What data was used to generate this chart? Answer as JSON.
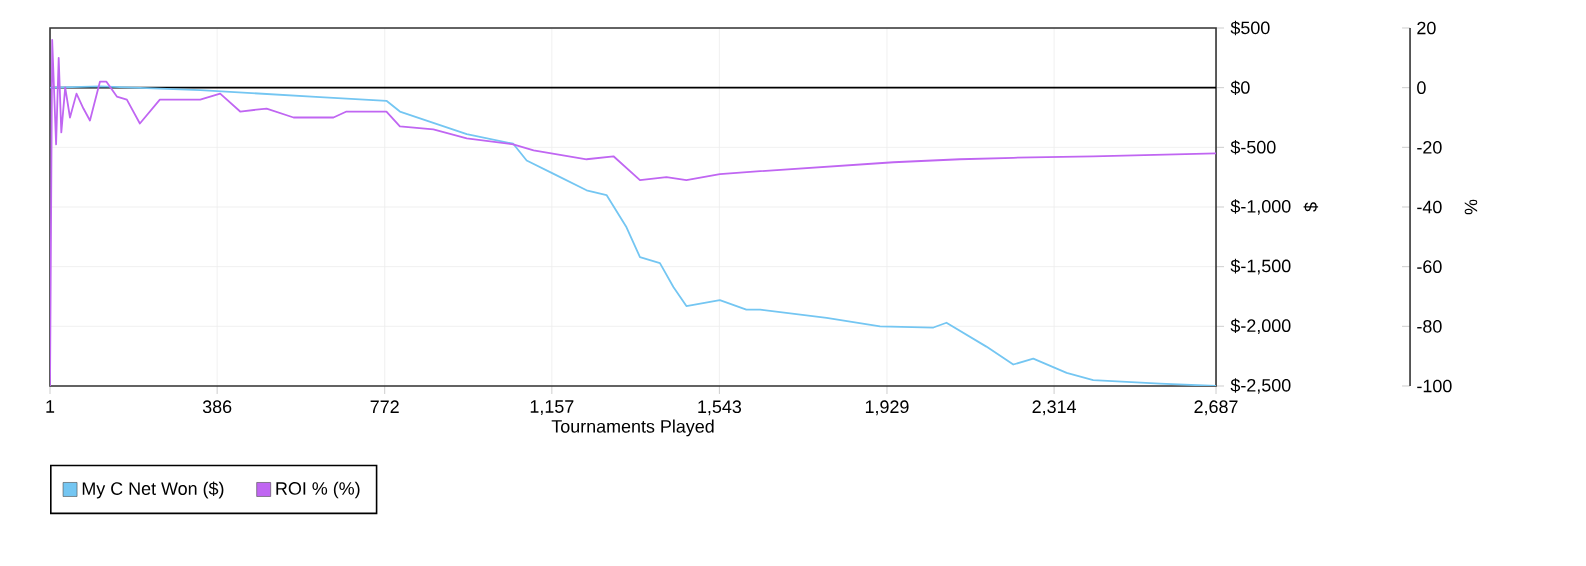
{
  "chart_data": {
    "type": "line",
    "xlabel": "Tournaments Played",
    "ylabel": "$",
    "y2label": "%",
    "xlim": [
      1,
      2687
    ],
    "xticks": [
      1,
      386,
      772,
      {
        "value": 1157,
        "label": "1,157"
      },
      {
        "value": 1543,
        "label": "1,543"
      },
      {
        "value": 1929,
        "label": "1,929"
      },
      {
        "value": 2314,
        "label": "2,314"
      },
      {
        "value": 2687,
        "label": "2,687"
      }
    ],
    "ylim": [
      -2500,
      500
    ],
    "yticks": [
      {
        "value": -2500,
        "label": "$-2,500"
      },
      {
        "value": -2000,
        "label": "$-2,000"
      },
      {
        "value": -1500,
        "label": "$-1,500"
      },
      {
        "value": -1000,
        "label": "$-1,000"
      },
      {
        "value": -500,
        "label": "$-500"
      },
      {
        "value": 0,
        "label": "$0"
      },
      {
        "value": 500,
        "label": "$500"
      }
    ],
    "y2lim": [
      -100,
      20
    ],
    "y2ticks": [
      -100,
      -80,
      -60,
      -40,
      -20,
      0,
      20
    ],
    "grid": true,
    "legend": "bottom left",
    "marker": "none",
    "line_style": "solid",
    "ref_lines": [
      {
        "axis": "y",
        "value": 0,
        "color": "#000000"
      }
    ],
    "series": [
      {
        "name": "My C Net Won ($)",
        "color": "#74c6f2",
        "x": [
          1,
          9,
          116,
          347,
          623,
          776,
          807,
          961,
          1068,
          1099,
          1160,
          1237,
          1283,
          1329,
          1360,
          1406,
          1437,
          1467,
          1544,
          1605,
          1637,
          1790,
          1913,
          2036,
          2066,
          2158,
          2220,
          2266,
          2343,
          2404,
          2558,
          2687
        ],
        "values": [
          0,
          0,
          10,
          -20,
          -80,
          -110,
          -200,
          -390,
          -470,
          -610,
          -720,
          -860,
          -900,
          -1170,
          -1420,
          -1470,
          -1670,
          -1830,
          -1780,
          -1860,
          -1860,
          -1930,
          -2000,
          -2010,
          -1970,
          -2170,
          -2320,
          -2270,
          -2390,
          -2450,
          -2480,
          -2500
        ]
      },
      {
        "name": "ROI % (%)",
        "color": "#c066f2",
        "axis": "y2",
        "x": [
          1,
          6,
          15,
          21,
          27,
          36,
          47,
          62,
          78,
          93,
          116,
          131,
          155,
          178,
          208,
          254,
          347,
          393,
          439,
          500,
          562,
          654,
          684,
          776,
          807,
          884,
          961,
          1068,
          1115,
          1237,
          1299,
          1360,
          1421,
          1467,
          1544,
          1637,
          1944,
          2097,
          2220,
          2404,
          2687
        ],
        "values": [
          -100,
          16,
          -19,
          10,
          -15,
          0,
          -10,
          -2,
          -7,
          -11,
          2,
          2,
          -3,
          -4,
          -12,
          -4,
          -4,
          -2,
          -8,
          -7,
          -10,
          -10,
          -8,
          -8,
          -13,
          -14,
          -17,
          -19,
          -21,
          -24,
          -23,
          -31,
          -30,
          -31,
          -29,
          -28,
          -25,
          -24,
          -23.5,
          -23,
          -22
        ]
      }
    ]
  }
}
